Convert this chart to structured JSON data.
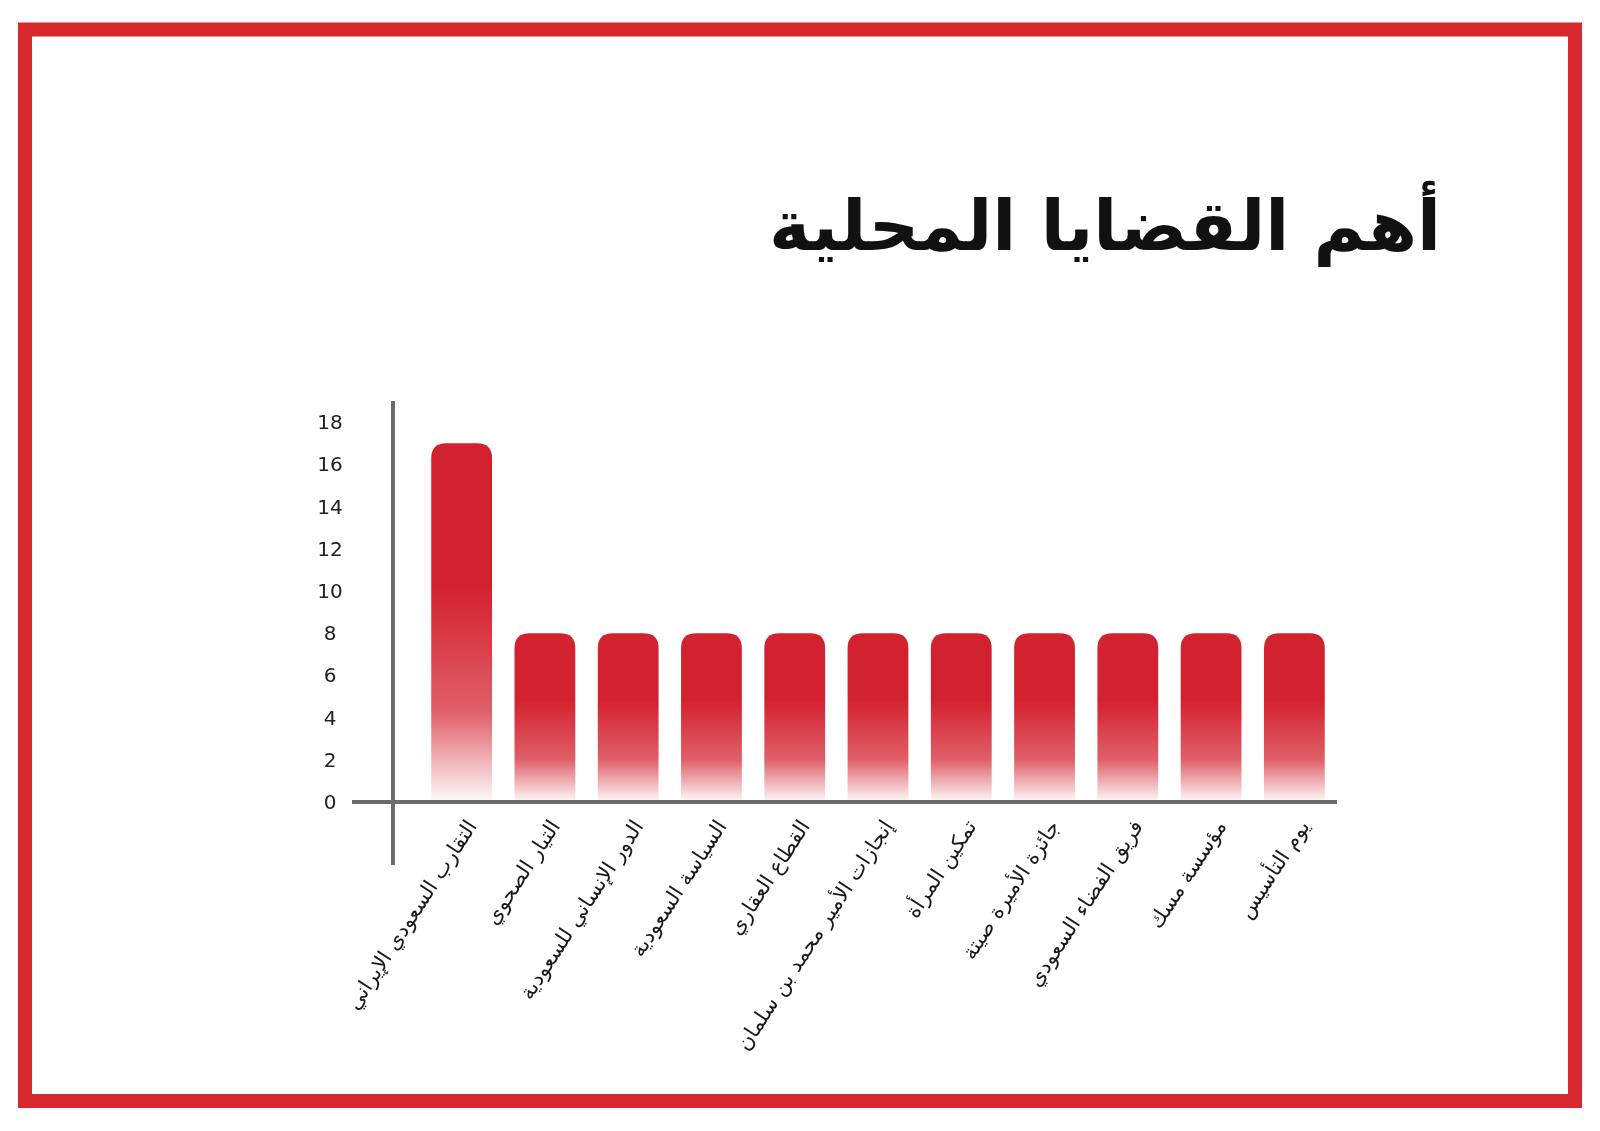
{
  "chart_data": {
    "type": "bar",
    "title": "أهم القضايا المحلية",
    "categories": [
      "التقارب السعودي الإيراني",
      "التيار الصحوي",
      "الدور الإنساني للسعودية",
      "السياسة السعودية",
      "القطاع العقاري",
      "إنجازات الأمير محمد بن سلمان",
      "تمكين المرأة",
      "جائزة الأميرة صيتة",
      "فريق الفضاء السعودي",
      "مؤسسة مسك",
      "يوم التأسيس"
    ],
    "values": [
      17,
      8,
      8,
      8,
      8,
      8,
      8,
      8,
      8,
      8,
      8
    ],
    "color": "#d3222f",
    "ylim": [
      0,
      19
    ],
    "yticks": [
      0,
      2,
      4,
      6,
      8,
      10,
      12,
      14,
      16,
      18
    ]
  }
}
